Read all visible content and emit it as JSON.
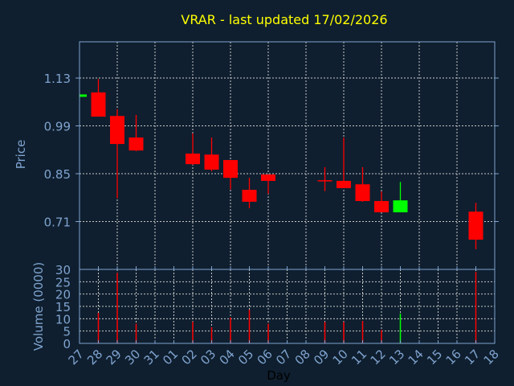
{
  "chart_data": {
    "type": "candlestick",
    "title": "VRAR - last updated 17/02/2026",
    "xlabel": "Day",
    "ylabel": "Price",
    "ylabel_volume": "Volume (0000)",
    "x_ticks": [
      "27",
      "28",
      "29",
      "30",
      "31",
      "01",
      "02",
      "03",
      "04",
      "05",
      "06",
      "07",
      "08",
      "09",
      "10",
      "11",
      "12",
      "13",
      "14",
      "15",
      "16",
      "17",
      "18"
    ],
    "y_ticks": [
      1.13,
      0.99,
      0.85,
      0.71
    ],
    "y_tick_labels": [
      "1.13",
      "0.99",
      "0.85",
      "0.71"
    ],
    "ylim": [
      0.57,
      1.236
    ],
    "volume_ticks": [
      0,
      5,
      10,
      15,
      20,
      25,
      30
    ],
    "volume_tick_labels": [
      "0",
      "5",
      "10",
      "15",
      "20",
      "25",
      "30"
    ],
    "volume_ylim": [
      0,
      30
    ],
    "candles": [
      {
        "day": "27",
        "open": 1.075,
        "high": 1.082,
        "low": 1.075,
        "close": 1.082,
        "volume": 0
      },
      {
        "day": "28",
        "open": 1.088,
        "high": 1.127,
        "low": 1.017,
        "close": 1.017,
        "volume": 12.4
      },
      {
        "day": "29",
        "open": 1.019,
        "high": 1.039,
        "low": 0.778,
        "close": 0.937,
        "volume": 28.6
      },
      {
        "day": "30",
        "open": 0.956,
        "high": 1.022,
        "low": 0.916,
        "close": 0.918,
        "volume": 8.0
      },
      {
        "day": "02",
        "open": 0.909,
        "high": 0.968,
        "low": 0.876,
        "close": 0.878,
        "volume": 8.8
      },
      {
        "day": "03",
        "open": 0.906,
        "high": 0.956,
        "low": 0.857,
        "close": 0.862,
        "volume": 6.5
      },
      {
        "day": "04",
        "open": 0.89,
        "high": 0.89,
        "low": 0.804,
        "close": 0.838,
        "volume": 10.5
      },
      {
        "day": "05",
        "open": 0.803,
        "high": 0.838,
        "low": 0.749,
        "close": 0.768,
        "volume": 13.7
      },
      {
        "day": "06",
        "open": 0.848,
        "high": 0.848,
        "low": 0.791,
        "close": 0.829,
        "volume": 8.0
      },
      {
        "day": "09",
        "open": 0.831,
        "high": 0.869,
        "low": 0.799,
        "close": 0.829,
        "volume": 8.7
      },
      {
        "day": "10",
        "open": 0.829,
        "high": 0.956,
        "low": 0.808,
        "close": 0.808,
        "volume": 8.7
      },
      {
        "day": "11",
        "open": 0.819,
        "high": 0.869,
        "low": 0.768,
        "close": 0.77,
        "volume": 9.1
      },
      {
        "day": "12",
        "open": 0.77,
        "high": 0.798,
        "low": 0.737,
        "close": 0.737,
        "volume": 5.4
      },
      {
        "day": "13",
        "open": 0.737,
        "high": 0.826,
        "low": 0.737,
        "close": 0.772,
        "volume": 12.1
      },
      {
        "day": "17",
        "open": 0.739,
        "high": 0.765,
        "low": 0.629,
        "close": 0.657,
        "volume": 29.0
      }
    ],
    "colors": {
      "up": "#00ff00",
      "down": "#ff0000",
      "title": "#ffff00",
      "axis": "#7fa3cf",
      "grid": "#c8c8c8",
      "background": "#0f1f2f"
    }
  }
}
